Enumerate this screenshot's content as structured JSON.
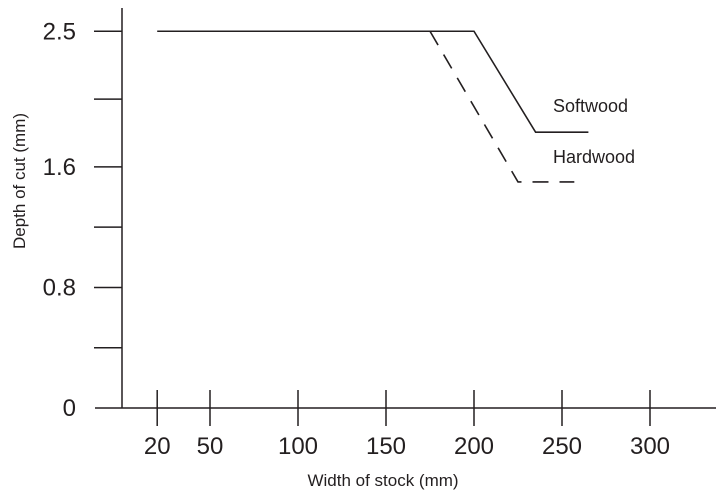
{
  "chart_data": {
    "type": "line",
    "title": "",
    "xlabel": "Width of stock (mm)",
    "ylabel": "Depth of cut (mm)",
    "xlim": [
      0,
      330
    ],
    "ylim": [
      0,
      2.5
    ],
    "x_ticks": [
      20,
      50,
      100,
      150,
      200,
      250,
      300
    ],
    "x_tick_labels": [
      "20",
      "50",
      "100",
      "150",
      "200",
      "250",
      "300"
    ],
    "y_ticks": [
      0,
      0.8,
      1.6,
      2.5
    ],
    "y_tick_labels": [
      "0",
      "0.8",
      "1.6",
      "2.5"
    ],
    "grid": false,
    "series": [
      {
        "name": "Softwood",
        "line_style": "solid",
        "x": [
          20,
          200,
          235,
          265
        ],
        "y": [
          2.5,
          2.5,
          1.83,
          1.83
        ]
      },
      {
        "name": "Hardwood",
        "line_style": "dashed",
        "x": [
          175,
          225,
          257
        ],
        "y": [
          2.5,
          1.5,
          1.5
        ]
      }
    ],
    "colors": {
      "line": "#231f20",
      "text": "#231f20",
      "axis": "#231f20",
      "background": "#ffffff"
    }
  }
}
